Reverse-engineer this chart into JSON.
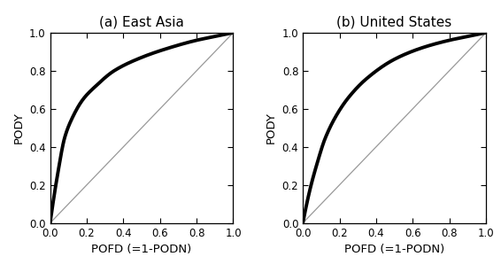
{
  "title_left": "(a) East Asia",
  "title_right": "(b) United States",
  "xlabel": "POFD (=1-PODN)",
  "ylabel": "PODY",
  "xlim": [
    0.0,
    1.0
  ],
  "ylim": [
    0.0,
    1.0
  ],
  "xticks": [
    0.0,
    0.2,
    0.4,
    0.6,
    0.8,
    1.0
  ],
  "yticks": [
    0.0,
    0.2,
    0.4,
    0.6,
    0.8,
    1.0
  ],
  "curve_color": "#000000",
  "curve_linewidth": 2.8,
  "diag_color": "#999999",
  "diag_linewidth": 0.9,
  "background_color": "#ffffff",
  "tick_fontsize": 8.5,
  "label_fontsize": 9.5,
  "title_fontsize": 11,
  "ea_control_x": [
    0.0,
    0.04,
    0.08,
    0.12,
    0.18,
    0.25,
    0.35,
    0.5,
    0.65,
    0.8,
    0.9,
    1.0
  ],
  "ea_control_y": [
    0.0,
    0.25,
    0.45,
    0.55,
    0.65,
    0.72,
    0.8,
    0.87,
    0.92,
    0.96,
    0.98,
    1.0
  ],
  "us_control_x": [
    0.0,
    0.04,
    0.08,
    0.12,
    0.18,
    0.25,
    0.35,
    0.5,
    0.65,
    0.8,
    0.9,
    1.0
  ],
  "us_control_y": [
    0.0,
    0.18,
    0.32,
    0.44,
    0.56,
    0.66,
    0.76,
    0.86,
    0.92,
    0.96,
    0.98,
    1.0
  ]
}
